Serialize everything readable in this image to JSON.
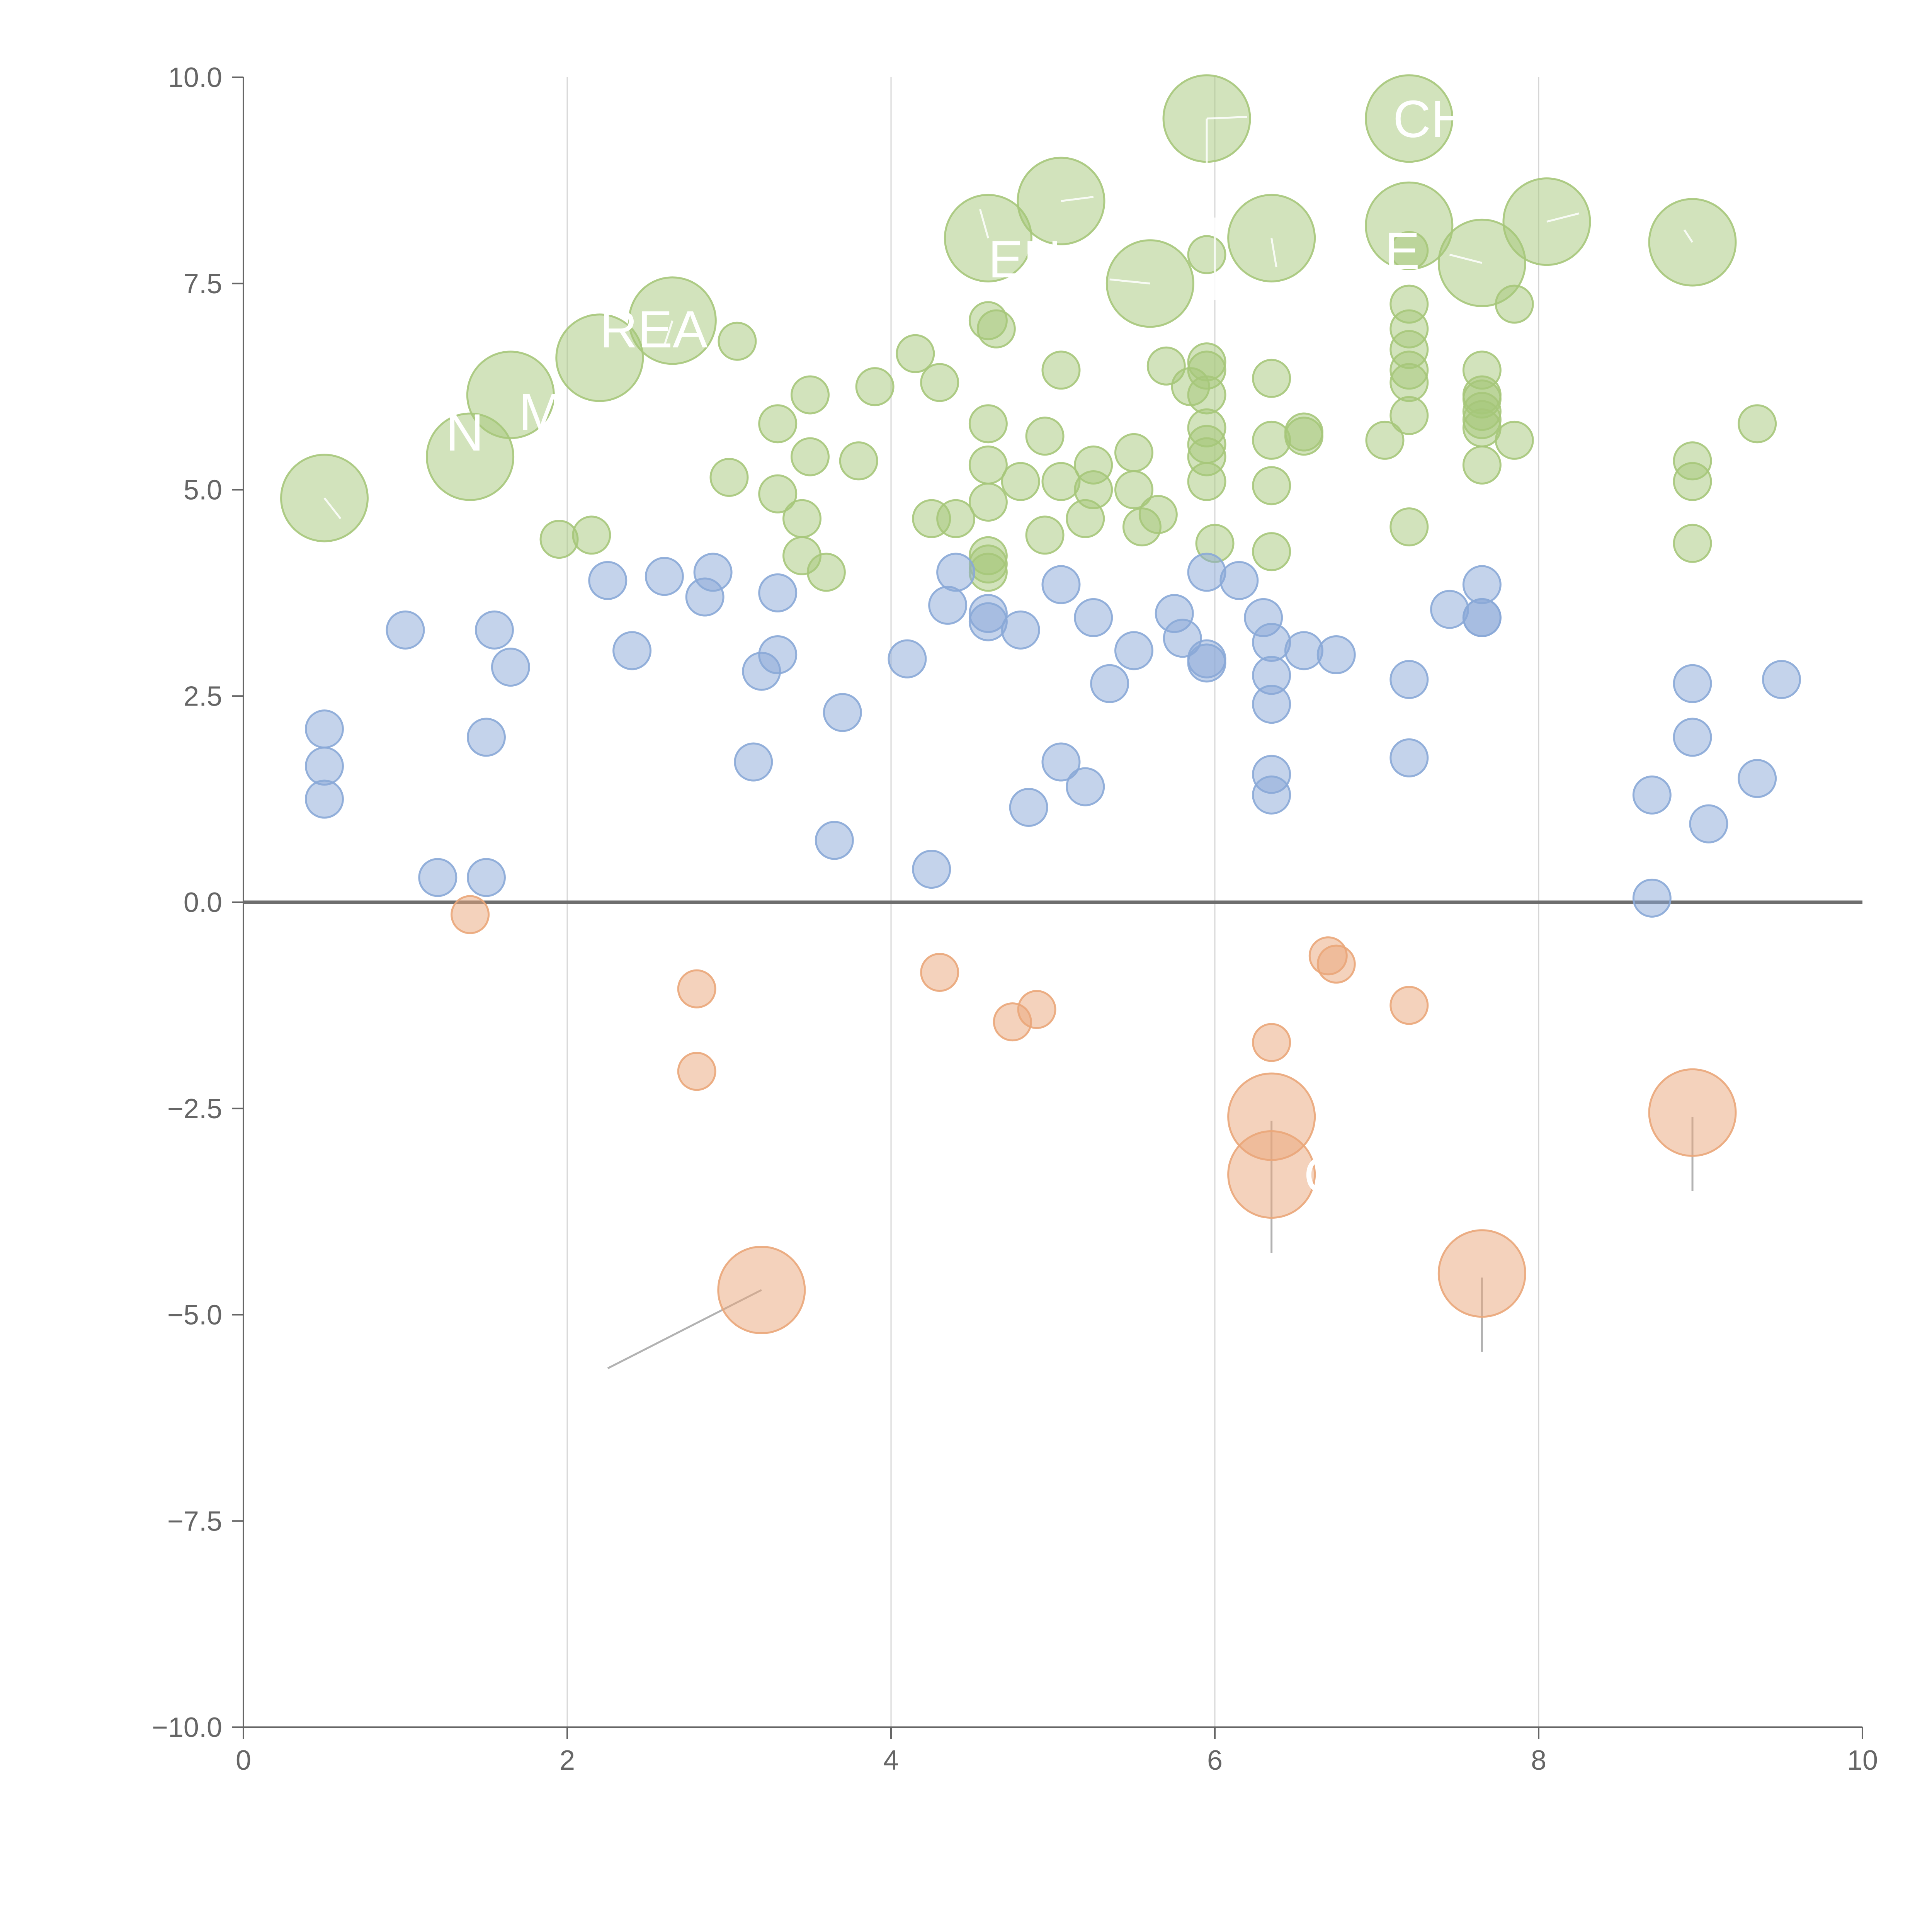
{
  "chart_data": {
    "type": "scatter",
    "title": "",
    "xlabel": "",
    "ylabel": "",
    "xlim": [
      0,
      10
    ],
    "ylim": [
      -10,
      10
    ],
    "xticks": [
      0,
      2,
      4,
      6,
      8,
      10
    ],
    "yticks": [
      -10.0,
      -7.5,
      -5.0,
      -2.5,
      0.0,
      2.5,
      5.0,
      7.5,
      10.0
    ],
    "xtick_labels": [
      "0",
      "2",
      "4",
      "6",
      "8",
      "10"
    ],
    "ytick_labels": [
      "−10.0",
      "−7.5",
      "−5.0",
      "−2.5",
      "0.0",
      "2.5",
      "5.0",
      "7.5",
      "10.0"
    ],
    "vertical_gridlines_at": [
      2,
      4,
      6,
      8
    ],
    "zero_line": true,
    "series": [
      {
        "name": "green",
        "color": "#a6c77a",
        "points": [
          [
            0.5,
            4.9,
            2
          ],
          [
            1.4,
            5.4,
            2
          ],
          [
            1.65,
            6.15,
            2
          ],
          [
            2.2,
            6.6,
            2
          ],
          [
            2.65,
            7.05,
            2
          ],
          [
            4.6,
            8.05,
            2
          ],
          [
            5.05,
            8.5,
            2
          ],
          [
            5.6,
            7.5,
            2
          ],
          [
            5.95,
            9.5,
            2
          ],
          [
            6.35,
            8.05,
            2
          ],
          [
            7.2,
            9.5,
            2
          ],
          [
            7.2,
            8.2,
            2
          ],
          [
            7.65,
            7.75,
            2
          ],
          [
            8.05,
            8.25,
            2
          ],
          [
            8.95,
            8.0,
            2
          ],
          [
            1.95,
            4.4,
            1
          ],
          [
            2.15,
            4.45,
            1
          ],
          [
            3.0,
            5.15,
            1
          ],
          [
            3.05,
            6.8,
            1
          ],
          [
            3.3,
            5.8,
            1
          ],
          [
            3.3,
            4.95,
            1
          ],
          [
            3.45,
            4.65,
            1
          ],
          [
            3.45,
            4.2,
            1
          ],
          [
            3.5,
            5.4,
            1
          ],
          [
            3.5,
            6.15,
            1
          ],
          [
            3.6,
            4.0,
            1
          ],
          [
            3.8,
            5.35,
            1
          ],
          [
            3.9,
            6.25,
            1
          ],
          [
            4.15,
            6.65,
            1
          ],
          [
            4.25,
            4.65,
            1
          ],
          [
            4.3,
            6.3,
            1
          ],
          [
            4.4,
            4.65,
            1
          ],
          [
            4.6,
            7.05,
            1
          ],
          [
            4.65,
            6.95,
            1
          ],
          [
            4.6,
            5.8,
            1
          ],
          [
            4.6,
            5.3,
            1
          ],
          [
            4.6,
            4.85,
            1
          ],
          [
            4.6,
            4.2,
            1
          ],
          [
            4.6,
            4.1,
            1
          ],
          [
            4.6,
            4.0,
            1
          ],
          [
            4.8,
            5.1,
            1
          ],
          [
            4.95,
            5.65,
            1
          ],
          [
            4.95,
            4.45,
            1
          ],
          [
            5.05,
            6.45,
            1
          ],
          [
            5.05,
            5.1,
            1
          ],
          [
            5.2,
            4.65,
            1
          ],
          [
            5.25,
            5.3,
            1
          ],
          [
            5.25,
            5.0,
            1
          ],
          [
            5.5,
            5.45,
            1
          ],
          [
            5.5,
            5.0,
            1
          ],
          [
            5.55,
            4.55,
            1
          ],
          [
            5.65,
            4.7,
            1
          ],
          [
            5.7,
            6.5,
            1
          ],
          [
            5.85,
            6.25,
            1
          ],
          [
            5.95,
            7.85,
            1
          ],
          [
            5.95,
            6.55,
            1
          ],
          [
            5.95,
            6.45,
            1
          ],
          [
            5.95,
            6.15,
            1
          ],
          [
            5.95,
            5.75,
            1
          ],
          [
            5.95,
            5.55,
            1
          ],
          [
            5.95,
            5.4,
            1
          ],
          [
            5.95,
            5.1,
            1
          ],
          [
            6.0,
            4.35,
            1
          ],
          [
            6.35,
            6.35,
            1
          ],
          [
            6.35,
            5.6,
            1
          ],
          [
            6.35,
            5.05,
            1
          ],
          [
            6.35,
            4.25,
            1
          ],
          [
            6.55,
            5.65,
            1
          ],
          [
            6.55,
            5.7,
            1
          ],
          [
            7.05,
            5.6,
            1
          ],
          [
            7.2,
            7.9,
            1
          ],
          [
            7.2,
            7.25,
            1
          ],
          [
            7.2,
            6.95,
            1
          ],
          [
            7.2,
            6.7,
            1
          ],
          [
            7.2,
            6.45,
            1
          ],
          [
            7.2,
            6.3,
            1
          ],
          [
            7.2,
            5.9,
            1
          ],
          [
            7.2,
            4.55,
            1
          ],
          [
            7.65,
            6.45,
            1
          ],
          [
            7.65,
            6.15,
            1
          ],
          [
            7.65,
            6.1,
            1
          ],
          [
            7.65,
            5.95,
            1
          ],
          [
            7.65,
            5.85,
            1
          ],
          [
            7.65,
            5.75,
            1
          ],
          [
            7.65,
            5.3,
            1
          ],
          [
            7.85,
            7.25,
            1
          ],
          [
            7.85,
            5.6,
            1
          ],
          [
            8.95,
            5.35,
            1
          ],
          [
            8.95,
            5.1,
            1
          ],
          [
            8.95,
            4.35,
            1
          ],
          [
            9.35,
            5.8,
            1
          ]
        ]
      },
      {
        "name": "blue",
        "color": "#89a8d7",
        "points": [
          [
            0.5,
            2.1,
            1
          ],
          [
            0.5,
            1.65,
            1
          ],
          [
            0.5,
            1.25,
            1
          ],
          [
            1.0,
            3.3,
            1
          ],
          [
            1.2,
            0.3,
            1
          ],
          [
            1.5,
            0.3,
            1
          ],
          [
            1.5,
            2.0,
            1
          ],
          [
            1.55,
            3.3,
            1
          ],
          [
            1.65,
            2.85,
            1
          ],
          [
            2.25,
            3.9,
            1
          ],
          [
            2.4,
            3.05,
            1
          ],
          [
            2.6,
            3.95,
            1
          ],
          [
            2.85,
            3.7,
            1
          ],
          [
            2.9,
            4.0,
            1
          ],
          [
            3.15,
            1.7,
            1
          ],
          [
            3.2,
            2.8,
            1
          ],
          [
            3.3,
            3.0,
            1
          ],
          [
            3.3,
            3.75,
            1
          ],
          [
            3.65,
            0.75,
            1
          ],
          [
            3.7,
            2.3,
            1
          ],
          [
            4.1,
            2.95,
            1
          ],
          [
            4.25,
            0.4,
            1
          ],
          [
            4.35,
            3.6,
            1
          ],
          [
            4.4,
            4.0,
            1
          ],
          [
            4.6,
            3.5,
            1
          ],
          [
            4.6,
            3.4,
            1
          ],
          [
            4.8,
            3.3,
            1
          ],
          [
            4.85,
            1.15,
            1
          ],
          [
            5.05,
            3.85,
            1
          ],
          [
            5.05,
            1.7,
            1
          ],
          [
            5.2,
            1.4,
            1
          ],
          [
            5.25,
            3.45,
            1
          ],
          [
            5.35,
            2.65,
            1
          ],
          [
            5.5,
            3.05,
            1
          ],
          [
            5.75,
            3.5,
            1
          ],
          [
            5.8,
            3.2,
            1
          ],
          [
            5.95,
            4.0,
            1
          ],
          [
            5.95,
            2.95,
            1
          ],
          [
            5.95,
            2.9,
            1
          ],
          [
            6.15,
            3.9,
            1
          ],
          [
            6.3,
            3.45,
            1
          ],
          [
            6.35,
            3.15,
            1
          ],
          [
            6.35,
            2.75,
            1
          ],
          [
            6.35,
            2.4,
            1
          ],
          [
            6.35,
            1.55,
            1
          ],
          [
            6.35,
            1.3,
            1
          ],
          [
            6.55,
            3.05,
            1
          ],
          [
            6.75,
            3.0,
            1
          ],
          [
            7.2,
            2.7,
            1
          ],
          [
            7.2,
            1.75,
            1
          ],
          [
            7.45,
            3.55,
            1
          ],
          [
            7.65,
            3.85,
            1
          ],
          [
            7.65,
            3.45,
            1
          ],
          [
            7.65,
            3.45,
            1
          ],
          [
            8.7,
            1.3,
            1
          ],
          [
            8.7,
            0.05,
            1
          ],
          [
            8.95,
            2.65,
            1
          ],
          [
            8.95,
            2.0,
            1
          ],
          [
            9.05,
            0.95,
            1
          ],
          [
            9.35,
            1.5,
            1
          ],
          [
            9.5,
            2.7,
            1
          ]
        ]
      },
      {
        "name": "orange",
        "color": "#eaa679",
        "points": [
          [
            1.4,
            -0.15,
            1
          ],
          [
            2.8,
            -1.05,
            1
          ],
          [
            2.8,
            -2.05,
            1
          ],
          [
            4.3,
            -0.85,
            1
          ],
          [
            4.75,
            -1.45,
            1
          ],
          [
            4.9,
            -1.3,
            1
          ],
          [
            6.35,
            -1.7,
            1
          ],
          [
            6.7,
            -0.65,
            1
          ],
          [
            6.75,
            -0.75,
            1
          ],
          [
            7.2,
            -1.25,
            1
          ],
          [
            6.35,
            -2.6,
            2
          ],
          [
            6.35,
            -3.3,
            2
          ],
          [
            3.2,
            -4.7,
            2
          ],
          [
            7.65,
            -4.5,
            2
          ],
          [
            8.95,
            -2.55,
            2
          ]
        ]
      }
    ],
    "annotations": [
      {
        "text": "CH",
        "anchor_series": "green",
        "anchor_index": 10,
        "dx": -0.1,
        "dy": 0.0
      },
      {
        "text": "EN",
        "anchor_series": "green",
        "anchor_index": 5,
        "dx": 0.0,
        "dy": -0.25
      },
      {
        "text": "E",
        "anchor_series": "green",
        "anchor_index": 11,
        "dx": -0.15,
        "dy": -0.3
      },
      {
        "text": "REA",
        "anchor_series": "green",
        "anchor_index": 3,
        "dx": 0.0,
        "dy": 0.35
      },
      {
        "text": "M",
        "anchor_series": "green",
        "anchor_index": 2,
        "dx": 0.05,
        "dy": -0.2
      },
      {
        "text": "N",
        "anchor_series": "green",
        "anchor_index": 1,
        "dx": -0.15,
        "dy": 0.3
      },
      {
        "text": "O",
        "anchor_series": "orange",
        "anchor_index": 11,
        "dx": 0.2,
        "dy": 0.0
      }
    ],
    "leader_lines": [
      [
        [
          2.25,
          -5.65
        ],
        [
          3.2,
          -4.7
        ]
      ],
      [
        [
          6.35,
          -2.65
        ],
        [
          6.35,
          -4.25
        ]
      ],
      [
        [
          7.65,
          -4.55
        ],
        [
          7.65,
          -5.45
        ]
      ],
      [
        [
          8.95,
          -2.6
        ],
        [
          8.95,
          -3.5
        ]
      ],
      [
        [
          5.95,
          9.5
        ],
        [
          5.95,
          8.8
        ]
      ],
      [
        [
          5.95,
          9.5
        ],
        [
          6.2,
          9.52
        ]
      ],
      [
        [
          6.0,
          8.3
        ],
        [
          6.0,
          7.3
        ]
      ],
      [
        [
          5.05,
          8.5
        ],
        [
          5.25,
          8.55
        ]
      ],
      [
        [
          4.6,
          8.05
        ],
        [
          4.55,
          8.4
        ]
      ],
      [
        [
          5.6,
          7.5
        ],
        [
          5.35,
          7.55
        ]
      ],
      [
        [
          6.35,
          8.05
        ],
        [
          6.38,
          7.7
        ]
      ],
      [
        [
          7.65,
          7.75
        ],
        [
          7.45,
          7.85
        ]
      ],
      [
        [
          8.05,
          8.25
        ],
        [
          8.25,
          8.35
        ]
      ],
      [
        [
          8.95,
          8.0
        ],
        [
          8.9,
          8.15
        ]
      ],
      [
        [
          2.65,
          7.05
        ],
        [
          2.6,
          6.75
        ]
      ],
      [
        [
          0.5,
          4.9
        ],
        [
          0.6,
          4.65
        ]
      ]
    ]
  }
}
